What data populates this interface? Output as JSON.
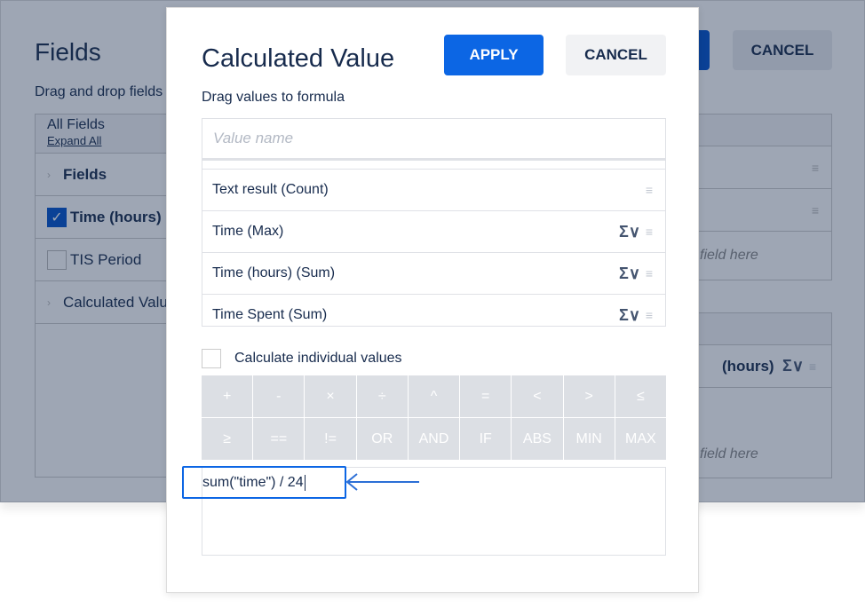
{
  "background": {
    "title": "Fields",
    "subtitle": "Drag and drop fields",
    "cancel_label": "CANCEL",
    "all_fields": "All Fields",
    "expand_all": "Expand All",
    "left_items": [
      {
        "label": "Fields",
        "type": "group"
      },
      {
        "label": "Time (hours)",
        "type": "checkbox",
        "checked": true
      },
      {
        "label": "TIS Period",
        "type": "checkbox",
        "checked": false
      },
      {
        "label": "Calculated Value",
        "type": "group"
      }
    ],
    "drop_hint": "field here",
    "value_item": "(hours)"
  },
  "modal": {
    "title": "Calculated Value",
    "apply_label": "APPLY",
    "cancel_label": "CANCEL",
    "hint": "Drag values to formula",
    "value_name_placeholder": "Value name",
    "values": [
      {
        "label": "Text result (Count)",
        "aggregate": false
      },
      {
        "label": "Time (Max)",
        "aggregate": true
      },
      {
        "label": "Time (hours) (Sum)",
        "aggregate": true
      },
      {
        "label": "Time Spent (Sum)",
        "aggregate": true
      }
    ],
    "aggregate_icon": "Σ∨",
    "calculate_individual": "Calculate individual values",
    "calculate_individual_checked": false,
    "operators": [
      "+",
      "-",
      "×",
      "÷",
      "^",
      "=",
      "<",
      ">",
      "≤",
      "≥",
      "==",
      "!=",
      "OR",
      "AND",
      "IF",
      "ABS",
      "MIN",
      "MAX"
    ],
    "formula": "sum(\"time\") / 24"
  },
  "colors": {
    "accent": "#0c66e4",
    "overlay": "#9ea5b3"
  }
}
